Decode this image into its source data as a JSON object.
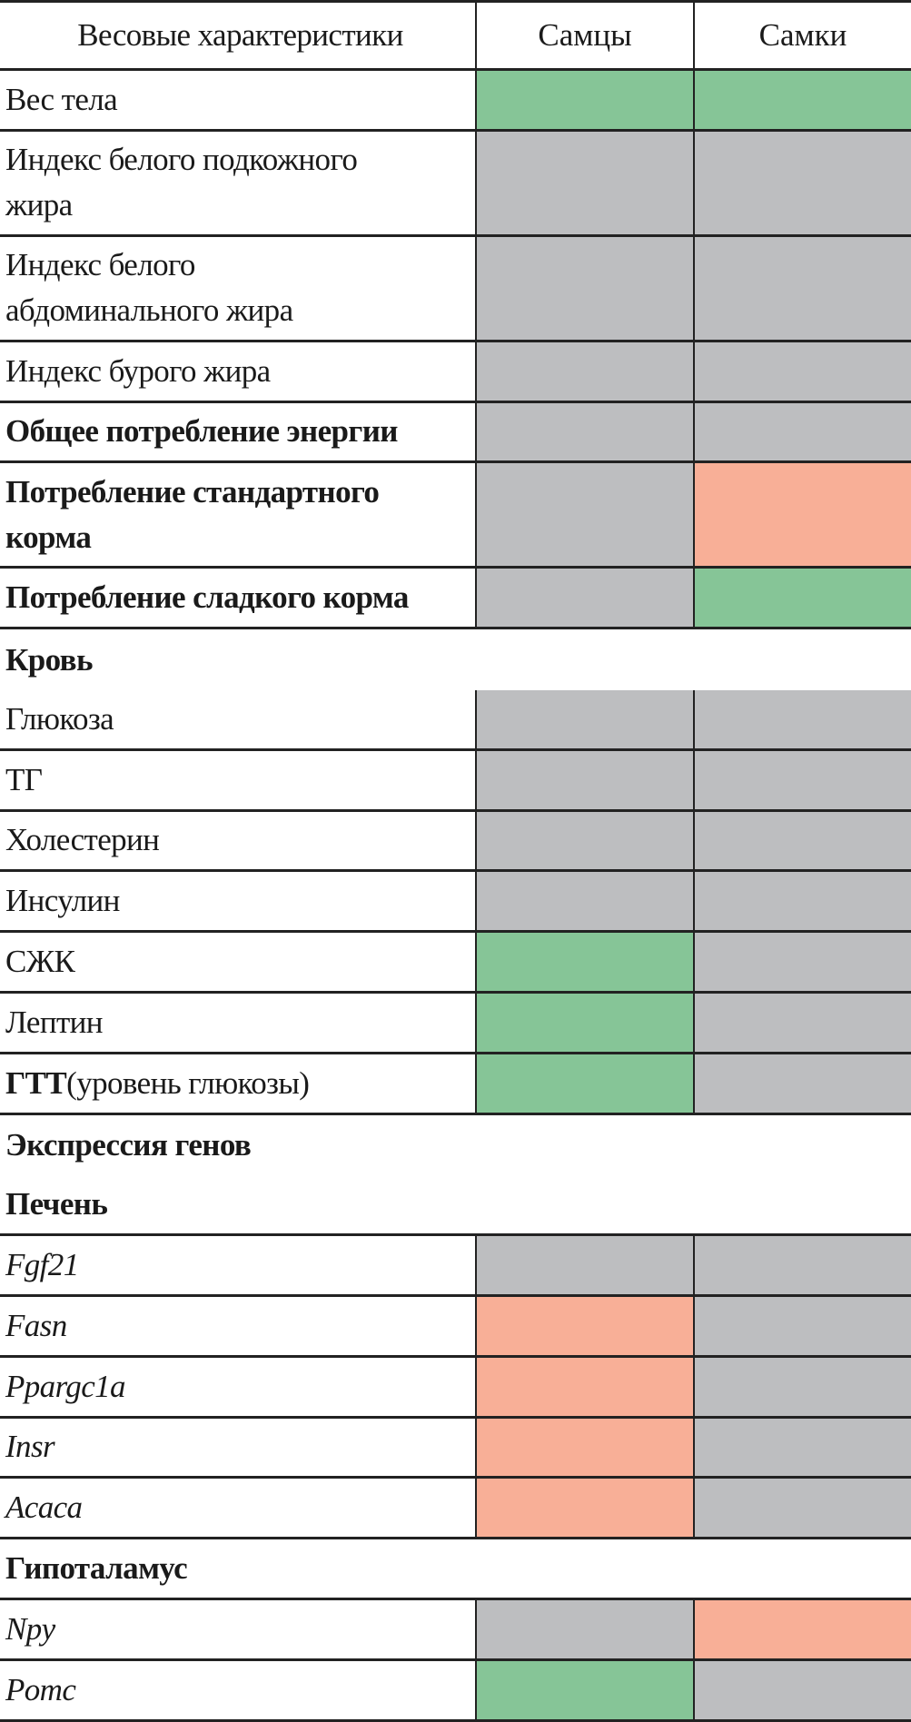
{
  "colors": {
    "green": "#86c597",
    "gray": "#bdbec0",
    "salmon": "#f8af97"
  },
  "header": {
    "label": "Весовые характеристики",
    "males": "Самцы",
    "females": "Самки"
  },
  "rows": [
    {
      "type": "data",
      "style": "normal",
      "lines": [
        "Вес тела"
      ],
      "males": "green",
      "females": "green"
    },
    {
      "type": "data",
      "style": "normal",
      "lines": [
        "Индекс белого подкожного",
        "жира"
      ],
      "males": "gray",
      "females": "gray"
    },
    {
      "type": "data",
      "style": "normal",
      "lines": [
        "Индекс белого",
        "абдоминального жира"
      ],
      "males": "gray",
      "females": "gray"
    },
    {
      "type": "data",
      "style": "normal",
      "lines": [
        "Индекс бурого жира"
      ],
      "males": "gray",
      "females": "gray"
    },
    {
      "type": "data",
      "style": "bold",
      "lines": [
        "Общее потребление энергии"
      ],
      "males": "gray",
      "females": "gray"
    },
    {
      "type": "data",
      "style": "bold",
      "lines": [
        "Потребление стандартного",
        "корма"
      ],
      "males": "gray",
      "females": "salmon"
    },
    {
      "type": "data",
      "style": "bold",
      "lines": [
        "Потребление сладкого корма"
      ],
      "males": "gray",
      "females": "green"
    },
    {
      "type": "section",
      "style": "bold",
      "lines": [
        "Кровь"
      ]
    },
    {
      "type": "data",
      "style": "normal",
      "lines": [
        "Глюкоза"
      ],
      "males": "gray",
      "females": "gray"
    },
    {
      "type": "data",
      "style": "normal",
      "lines": [
        "ТГ"
      ],
      "males": "gray",
      "females": "gray"
    },
    {
      "type": "data",
      "style": "normal",
      "lines": [
        "Холестерин"
      ],
      "males": "gray",
      "females": "gray"
    },
    {
      "type": "data",
      "style": "normal",
      "lines": [
        "Инсулин"
      ],
      "males": "gray",
      "females": "gray"
    },
    {
      "type": "data",
      "style": "normal",
      "lines": [
        "СЖК"
      ],
      "males": "green",
      "females": "gray"
    },
    {
      "type": "data",
      "style": "normal",
      "lines": [
        "Лептин"
      ],
      "males": "green",
      "females": "gray"
    },
    {
      "type": "data",
      "style": "mixed",
      "bold_part": "ГТТ",
      "normal_part": "(уровень глюкозы)",
      "males": "green",
      "females": "gray"
    },
    {
      "type": "section",
      "style": "bold",
      "lines": [
        "Экспрессия генов"
      ]
    },
    {
      "type": "section",
      "style": "bold",
      "lines": [
        "Печень"
      ],
      "last": true
    },
    {
      "type": "data",
      "style": "italic",
      "lines": [
        "Fgf21"
      ],
      "males": "gray",
      "females": "gray"
    },
    {
      "type": "data",
      "style": "italic",
      "lines": [
        "Fasn"
      ],
      "males": "salmon",
      "females": "gray"
    },
    {
      "type": "data",
      "style": "italic",
      "lines": [
        "Ppargc1a"
      ],
      "males": "salmon",
      "females": "gray"
    },
    {
      "type": "data",
      "style": "italic",
      "lines": [
        "Insr"
      ],
      "males": "salmon",
      "females": "gray"
    },
    {
      "type": "data",
      "style": "italic",
      "lines": [
        "Acaca"
      ],
      "males": "salmon",
      "females": "gray"
    },
    {
      "type": "section",
      "style": "bold",
      "lines": [
        "Гипоталамус"
      ],
      "last": true
    },
    {
      "type": "data",
      "style": "italic",
      "lines": [
        "Npy"
      ],
      "males": "gray",
      "females": "salmon"
    },
    {
      "type": "data",
      "style": "italic",
      "lines": [
        "Pomc"
      ],
      "males": "green",
      "females": "gray"
    }
  ]
}
